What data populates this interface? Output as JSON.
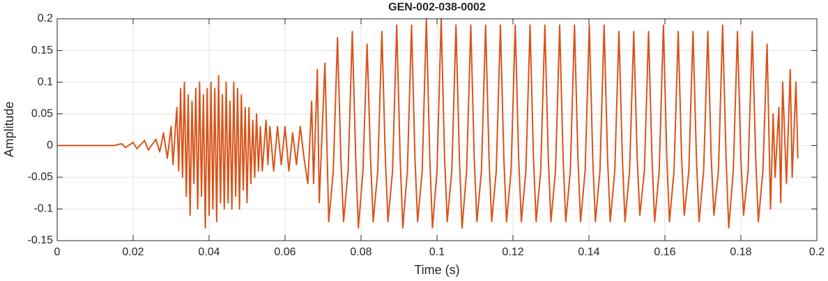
{
  "chart_data": {
    "type": "line",
    "title": "GEN-002-038-0002",
    "xlabel": "Time (s)",
    "ylabel": "Amplitude",
    "xlim": [
      0,
      0.2
    ],
    "ylim": [
      -0.15,
      0.2
    ],
    "xticks": [
      0,
      0.02,
      0.04,
      0.06,
      0.08,
      0.1,
      0.12,
      0.14,
      0.16,
      0.18,
      0.2
    ],
    "yticks": [
      -0.15,
      -0.1,
      -0.05,
      0,
      0.05,
      0.1,
      0.15,
      0.2
    ],
    "grid": true,
    "x": [
      0,
      0.015,
      0.017,
      0.018,
      0.02,
      0.021,
      0.023,
      0.024,
      0.026,
      0.027,
      0.028,
      0.029,
      0.03,
      0.0305,
      0.0315,
      0.032,
      0.0325,
      0.033,
      0.0335,
      0.034,
      0.0345,
      0.035,
      0.0355,
      0.036,
      0.0365,
      0.037,
      0.0375,
      0.038,
      0.0385,
      0.039,
      0.0395,
      0.04,
      0.0405,
      0.041,
      0.0415,
      0.042,
      0.0425,
      0.043,
      0.0435,
      0.044,
      0.0445,
      0.045,
      0.0455,
      0.046,
      0.0465,
      0.047,
      0.0475,
      0.048,
      0.0485,
      0.049,
      0.0495,
      0.05,
      0.0505,
      0.051,
      0.0515,
      0.052,
      0.0525,
      0.053,
      0.0535,
      0.054,
      0.055,
      0.0555,
      0.056,
      0.057,
      0.058,
      0.059,
      0.06,
      0.061,
      0.062,
      0.063,
      0.064,
      0.065,
      0.066,
      0.067,
      0.0675,
      0.0685,
      0.069,
      0.0705,
      0.0715,
      0.0727,
      0.0738,
      0.0747,
      0.0754,
      0.0766,
      0.0777,
      0.0786,
      0.0793,
      0.0805,
      0.0816,
      0.0825,
      0.0832,
      0.0844,
      0.0855,
      0.0864,
      0.0871,
      0.0883,
      0.0894,
      0.0903,
      0.091,
      0.0922,
      0.0933,
      0.0942,
      0.0949,
      0.0961,
      0.0972,
      0.0981,
      0.0988,
      0.1,
      0.1011,
      0.102,
      0.1027,
      0.1039,
      0.105,
      0.1059,
      0.1066,
      0.1078,
      0.1089,
      0.1098,
      0.1105,
      0.1117,
      0.1128,
      0.1137,
      0.1144,
      0.1156,
      0.1167,
      0.1176,
      0.1183,
      0.1195,
      0.1206,
      0.1215,
      0.1222,
      0.1234,
      0.1245,
      0.1254,
      0.1261,
      0.1273,
      0.1284,
      0.1293,
      0.13,
      0.1312,
      0.1323,
      0.1332,
      0.1339,
      0.1351,
      0.1362,
      0.1371,
      0.1378,
      0.139,
      0.1401,
      0.141,
      0.1417,
      0.1429,
      0.144,
      0.1449,
      0.1456,
      0.1468,
      0.1479,
      0.1488,
      0.1495,
      0.1507,
      0.1518,
      0.1527,
      0.1534,
      0.1546,
      0.1557,
      0.1566,
      0.1573,
      0.1585,
      0.1596,
      0.1605,
      0.1612,
      0.1624,
      0.1635,
      0.1644,
      0.1651,
      0.1663,
      0.1674,
      0.1683,
      0.169,
      0.1702,
      0.1713,
      0.1722,
      0.1729,
      0.1741,
      0.1752,
      0.1761,
      0.1768,
      0.178,
      0.1791,
      0.18,
      0.1807,
      0.1819,
      0.183,
      0.1839,
      0.1846,
      0.1858,
      0.1869,
      0.1878,
      0.1885,
      0.189,
      0.19,
      0.1905,
      0.191,
      0.192,
      0.193,
      0.1935,
      0.1945,
      0.195
    ],
    "series": [
      {
        "color": "#d95319",
        "values": [
          0,
          0,
          0.003,
          -0.003,
          0.005,
          -0.005,
          0.008,
          -0.007,
          0.01,
          -0.01,
          0.02,
          -0.02,
          0.03,
          -0.03,
          0.06,
          -0.04,
          0.09,
          -0.05,
          0.1,
          -0.08,
          0.08,
          -0.11,
          0.07,
          -0.06,
          0.09,
          -0.1,
          0.1,
          -0.08,
          0.08,
          -0.13,
          0.09,
          -0.11,
          0.1,
          -0.1,
          0.09,
          -0.12,
          0.11,
          -0.09,
          0.08,
          -0.1,
          0.1,
          -0.09,
          0.07,
          -0.1,
          0.1,
          -0.08,
          0.09,
          -0.1,
          0.08,
          -0.07,
          0.06,
          -0.09,
          0.06,
          -0.06,
          0.04,
          -0.05,
          0.05,
          -0.04,
          0.03,
          -0.04,
          0.04,
          -0.03,
          0.03,
          -0.04,
          0.03,
          -0.03,
          0.03,
          -0.04,
          0.02,
          -0.03,
          0.03,
          -0.02,
          -0.06,
          0.07,
          -0.06,
          0.12,
          -0.09,
          0.13,
          -0.12,
          -0.04,
          0.17,
          -0.02,
          -0.12,
          -0.04,
          0.18,
          -0.02,
          -0.13,
          -0.04,
          0.16,
          -0.02,
          -0.12,
          -0.04,
          0.18,
          -0.02,
          -0.12,
          -0.04,
          0.19,
          -0.02,
          -0.13,
          -0.04,
          0.19,
          -0.02,
          -0.12,
          -0.04,
          0.2,
          -0.02,
          -0.13,
          -0.04,
          0.2,
          -0.02,
          -0.12,
          -0.04,
          0.19,
          -0.02,
          -0.13,
          -0.04,
          0.19,
          -0.02,
          -0.12,
          -0.04,
          0.19,
          -0.02,
          -0.12,
          -0.04,
          0.19,
          -0.02,
          -0.12,
          -0.04,
          0.19,
          -0.02,
          -0.12,
          -0.04,
          0.19,
          -0.02,
          -0.12,
          -0.04,
          0.19,
          -0.02,
          -0.12,
          -0.04,
          0.19,
          -0.02,
          -0.12,
          -0.04,
          0.19,
          -0.02,
          -0.12,
          -0.04,
          0.19,
          -0.02,
          -0.12,
          -0.04,
          0.19,
          -0.02,
          -0.12,
          -0.04,
          0.18,
          -0.02,
          -0.12,
          -0.04,
          0.18,
          -0.02,
          -0.11,
          -0.04,
          0.18,
          -0.02,
          -0.12,
          -0.04,
          0.19,
          -0.02,
          -0.12,
          -0.04,
          0.18,
          -0.02,
          -0.11,
          -0.04,
          0.18,
          -0.02,
          -0.12,
          -0.04,
          0.18,
          -0.02,
          -0.11,
          -0.04,
          0.19,
          -0.02,
          -0.13,
          -0.04,
          0.18,
          -0.02,
          -0.11,
          -0.04,
          0.18,
          -0.02,
          -0.12,
          -0.04,
          0.16,
          -0.1,
          0.05,
          -0.05,
          0.06,
          -0.09,
          0.1,
          -0.06,
          0.12,
          -0.05,
          0.1,
          -0.02
        ]
      }
    ]
  }
}
